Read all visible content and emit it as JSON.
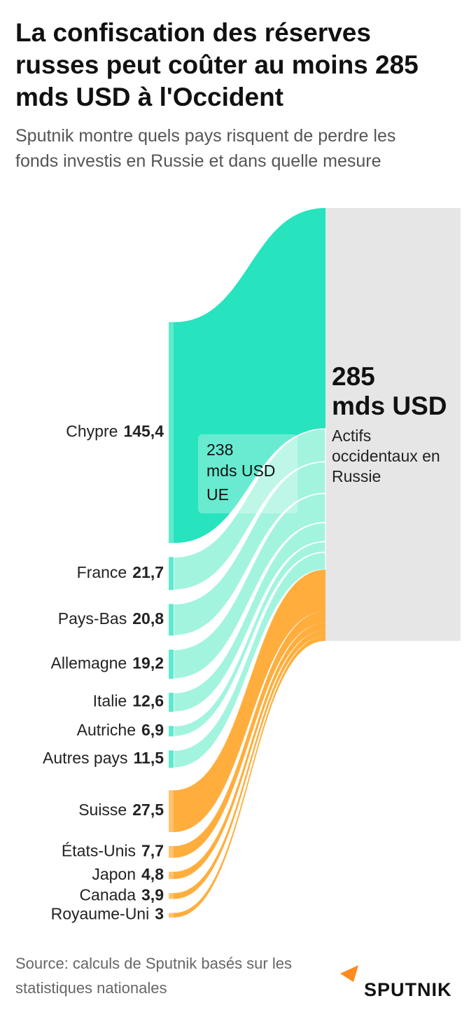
{
  "chart_data": {
    "type": "sankey",
    "title": "La confiscation des réserves russes peut coûter au moins 285 mds USD à l'Occident",
    "subtitle": "Sputnik montre quels pays risquent de perdre les fonds investis en Russie et dans quelle mesure",
    "total": {
      "value": 285,
      "unit": "mds USD",
      "label": "Actifs occidentaux en Russie",
      "color": "#e6e6e6"
    },
    "series": [
      {
        "name": "UE",
        "total": 238,
        "unit": "mds USD",
        "color": "#27e3be",
        "categories": [
          "Chypre",
          "France",
          "Pays-Bas",
          "Allemagne",
          "Italie",
          "Autriche",
          "Autres pays"
        ],
        "values": [
          145.4,
          21.7,
          20.8,
          19.2,
          12.6,
          6.9,
          11.5
        ],
        "value_labels": [
          "145,4",
          "21,7",
          "20,8",
          "19,2",
          "12,6",
          "6,9",
          "11,5"
        ]
      },
      {
        "name": null,
        "color": "#ffae3d",
        "categories": [
          "Suisse",
          "États-Unis",
          "Japon",
          "Canada",
          "Royaume-Uni"
        ],
        "values": [
          27.5,
          7.7,
          4.8,
          3.9,
          3
        ],
        "value_labels": [
          "27,5",
          "7,7",
          "4,8",
          "3,9",
          "3"
        ]
      }
    ],
    "source": "Source: calculs de Sputnik basés sur les statistiques nationales",
    "logo": "SPUTNIK"
  }
}
